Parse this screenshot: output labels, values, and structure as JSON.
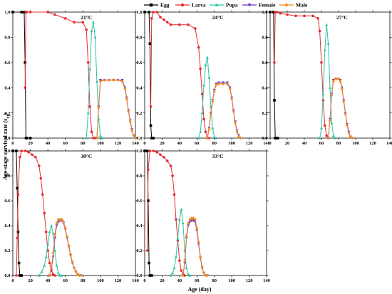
{
  "figure": {
    "legend": [
      {
        "name": "Egg",
        "color": "#000000",
        "marker": "square"
      },
      {
        "name": "Larva",
        "color": "#e8292f",
        "marker": "circle"
      },
      {
        "name": "Pupa",
        "color": "#2bc4a3",
        "marker": "triangle-up"
      },
      {
        "name": "Female",
        "color": "#6a2fd0",
        "marker": "triangle-down"
      },
      {
        "name": "Male",
        "color": "#f28a1e",
        "marker": "diamond"
      }
    ],
    "xlabel": "Age (day)",
    "ylabel": "Age-stage survival rate (sxj)",
    "ylabel_main": "Age-stage survival rate (s",
    "ylabel_sub": "xj",
    "ylabel_close": ")"
  },
  "chart_data": [
    {
      "type": "line",
      "title": "21°C",
      "xlim": [
        0,
        140
      ],
      "ylim": [
        0,
        1.0
      ],
      "xticks": [
        0,
        20,
        40,
        60,
        80,
        100,
        120,
        140
      ],
      "yticks": [
        0.0,
        0.2,
        0.4,
        0.6,
        0.8,
        1.0
      ],
      "series": [
        {
          "name": "Egg",
          "x": [
            0,
            10,
            13,
            14,
            15,
            16,
            20
          ],
          "y": [
            1.0,
            1.0,
            1.0,
            0.6,
            0.0,
            0.0,
            0.0
          ]
        },
        {
          "name": "Larva",
          "x": [
            14,
            15,
            16,
            20,
            40,
            48,
            60,
            70,
            80,
            84,
            86,
            88,
            90,
            92,
            94
          ],
          "y": [
            0.4,
            1.0,
            1.0,
            1.0,
            1.0,
            0.98,
            0.95,
            0.92,
            0.92,
            0.86,
            0.6,
            0.25,
            0.05,
            0.0,
            0.0
          ]
        },
        {
          "name": "Pupa",
          "x": [
            84,
            86,
            88,
            90,
            92,
            94,
            96,
            98,
            100,
            102
          ],
          "y": [
            0.0,
            0.2,
            0.55,
            0.85,
            0.92,
            0.8,
            0.45,
            0.15,
            0.02,
            0.0
          ]
        },
        {
          "name": "Female",
          "x": [
            96,
            98,
            100,
            105,
            110,
            115,
            120,
            125,
            128,
            130,
            132,
            134,
            136,
            138,
            140
          ],
          "y": [
            0.0,
            0.25,
            0.46,
            0.46,
            0.46,
            0.46,
            0.46,
            0.46,
            0.4,
            0.32,
            0.22,
            0.14,
            0.07,
            0.02,
            0.0
          ]
        },
        {
          "name": "Male",
          "x": [
            96,
            98,
            100,
            105,
            110,
            115,
            120,
            125,
            128,
            130,
            132,
            134,
            136,
            138,
            140
          ],
          "y": [
            0.0,
            0.24,
            0.45,
            0.46,
            0.46,
            0.46,
            0.46,
            0.45,
            0.39,
            0.31,
            0.21,
            0.13,
            0.06,
            0.02,
            0.0
          ]
        }
      ]
    },
    {
      "type": "line",
      "title": "24°C",
      "xlim": [
        0,
        140
      ],
      "ylim": [
        0,
        1.0
      ],
      "xticks": [
        0,
        20,
        40,
        60,
        80,
        100,
        120,
        140
      ],
      "yticks": [
        0.0,
        0.2,
        0.4,
        0.6,
        0.8,
        1.0
      ],
      "series": [
        {
          "name": "Egg",
          "x": [
            0,
            5,
            6,
            7,
            8,
            10
          ],
          "y": [
            1.0,
            1.0,
            0.75,
            0.1,
            0.0,
            0.0
          ]
        },
        {
          "name": "Larva",
          "x": [
            7,
            8,
            10,
            14,
            18,
            22,
            26,
            30,
            40,
            50,
            58,
            62,
            64,
            66,
            68,
            70,
            72,
            74
          ],
          "y": [
            0.25,
            0.95,
            1.0,
            1.0,
            0.96,
            0.94,
            0.92,
            0.9,
            0.9,
            0.9,
            0.87,
            0.72,
            0.55,
            0.35,
            0.15,
            0.05,
            0.0,
            0.0
          ]
        },
        {
          "name": "Pupa",
          "x": [
            62,
            64,
            66,
            68,
            70,
            72,
            74,
            76,
            78,
            80,
            82
          ],
          "y": [
            0.0,
            0.05,
            0.2,
            0.42,
            0.58,
            0.64,
            0.48,
            0.25,
            0.08,
            0.01,
            0.0
          ]
        },
        {
          "name": "Female",
          "x": [
            72,
            74,
            76,
            78,
            80,
            82,
            85,
            90,
            95,
            98,
            100,
            102,
            104,
            106,
            108,
            110
          ],
          "y": [
            0.0,
            0.08,
            0.2,
            0.3,
            0.38,
            0.43,
            0.44,
            0.44,
            0.44,
            0.4,
            0.32,
            0.22,
            0.13,
            0.06,
            0.02,
            0.0
          ]
        },
        {
          "name": "Male",
          "x": [
            72,
            74,
            76,
            78,
            80,
            82,
            85,
            90,
            95,
            98,
            100,
            102,
            104,
            106,
            108,
            110
          ],
          "y": [
            0.0,
            0.07,
            0.19,
            0.29,
            0.37,
            0.42,
            0.43,
            0.43,
            0.43,
            0.39,
            0.31,
            0.21,
            0.12,
            0.05,
            0.01,
            0.0
          ]
        }
      ]
    },
    {
      "type": "line",
      "title": "27°C",
      "xlim": [
        0,
        140
      ],
      "ylim": [
        0,
        1.0
      ],
      "xticks": [
        0,
        20,
        40,
        60,
        80,
        100,
        120,
        140
      ],
      "yticks": [
        0.0,
        0.2,
        0.4,
        0.6,
        0.8,
        1.0
      ],
      "series": [
        {
          "name": "Egg",
          "x": [
            0,
            4,
            5,
            6,
            7,
            9
          ],
          "y": [
            1.0,
            1.0,
            0.3,
            0.0,
            0.0,
            0.0
          ]
        },
        {
          "name": "Larva",
          "x": [
            5,
            6,
            8,
            12,
            20,
            30,
            40,
            50,
            56,
            58,
            60,
            62,
            64,
            66,
            68
          ],
          "y": [
            0.6,
            1.0,
            1.0,
            0.99,
            0.98,
            0.97,
            0.97,
            0.97,
            0.95,
            0.85,
            0.6,
            0.3,
            0.1,
            0.02,
            0.0
          ]
        },
        {
          "name": "Pupa",
          "x": [
            58,
            60,
            62,
            64,
            66,
            68,
            70,
            72,
            74,
            76
          ],
          "y": [
            0.0,
            0.08,
            0.35,
            0.7,
            0.9,
            0.75,
            0.4,
            0.12,
            0.02,
            0.0
          ]
        },
        {
          "name": "Female",
          "x": [
            68,
            70,
            72,
            74,
            76,
            78,
            80,
            82,
            84,
            86,
            88,
            90,
            92,
            94,
            96
          ],
          "y": [
            0.0,
            0.15,
            0.35,
            0.46,
            0.47,
            0.47,
            0.47,
            0.46,
            0.4,
            0.3,
            0.2,
            0.11,
            0.05,
            0.01,
            0.0
          ]
        },
        {
          "name": "Male",
          "x": [
            68,
            70,
            72,
            74,
            76,
            78,
            80,
            82,
            84,
            86,
            88,
            90,
            92,
            94,
            96
          ],
          "y": [
            0.0,
            0.14,
            0.34,
            0.45,
            0.47,
            0.47,
            0.47,
            0.45,
            0.39,
            0.29,
            0.19,
            0.1,
            0.04,
            0.01,
            0.0
          ]
        }
      ]
    },
    {
      "type": "line",
      "title": "30°C",
      "xlim": [
        0,
        140
      ],
      "ylim": [
        0,
        1.0
      ],
      "xticks": [
        0,
        20,
        40,
        60,
        80,
        100,
        120,
        140
      ],
      "yticks": [
        0.0,
        0.2,
        0.4,
        0.6,
        0.8,
        1.0
      ],
      "series": [
        {
          "name": "Egg",
          "x": [
            0,
            4,
            5,
            6,
            7,
            8,
            10
          ],
          "y": [
            1.0,
            1.0,
            0.7,
            0.35,
            0.1,
            0.0,
            0.0
          ]
        },
        {
          "name": "Larva",
          "x": [
            4,
            5,
            6,
            8,
            10,
            14,
            18,
            22,
            26,
            30,
            32,
            34,
            36,
            38,
            40,
            42,
            44,
            46,
            48
          ],
          "y": [
            0.0,
            0.3,
            0.65,
            0.95,
            1.0,
            1.0,
            0.99,
            0.97,
            0.95,
            0.88,
            0.78,
            0.65,
            0.5,
            0.35,
            0.2,
            0.1,
            0.04,
            0.01,
            0.0
          ]
        },
        {
          "name": "Pupa",
          "x": [
            30,
            33,
            36,
            38,
            40,
            42,
            44,
            46,
            48,
            50,
            52,
            54,
            56
          ],
          "y": [
            0.0,
            0.03,
            0.08,
            0.15,
            0.25,
            0.35,
            0.4,
            0.34,
            0.2,
            0.08,
            0.02,
            0.0,
            0.0
          ]
        },
        {
          "name": "Female",
          "x": [
            42,
            44,
            46,
            48,
            50,
            52,
            54,
            56,
            58,
            60,
            62,
            64,
            66,
            68,
            70,
            72,
            74,
            76,
            78
          ],
          "y": [
            0.0,
            0.05,
            0.15,
            0.3,
            0.4,
            0.43,
            0.44,
            0.44,
            0.42,
            0.37,
            0.3,
            0.23,
            0.16,
            0.1,
            0.06,
            0.03,
            0.01,
            0.0,
            0.0
          ]
        },
        {
          "name": "Male",
          "x": [
            42,
            44,
            46,
            48,
            50,
            52,
            54,
            56,
            58,
            60,
            62,
            64,
            66,
            68,
            70,
            72,
            74,
            76,
            78
          ],
          "y": [
            0.0,
            0.06,
            0.18,
            0.33,
            0.42,
            0.45,
            0.45,
            0.45,
            0.43,
            0.38,
            0.31,
            0.24,
            0.17,
            0.11,
            0.06,
            0.03,
            0.01,
            0.0,
            0.0
          ]
        }
      ]
    },
    {
      "type": "line",
      "title": "33°C",
      "xlim": [
        0,
        140
      ],
      "ylim": [
        0,
        1.0
      ],
      "xticks": [
        0,
        20,
        40,
        60,
        80,
        100,
        120,
        140
      ],
      "yticks": [
        0.0,
        0.2,
        0.4,
        0.6,
        0.8,
        1.0
      ],
      "series": [
        {
          "name": "Egg",
          "x": [
            0,
            3,
            4,
            5,
            6,
            8
          ],
          "y": [
            1.0,
            1.0,
            0.6,
            0.1,
            0.0,
            0.0
          ]
        },
        {
          "name": "Larva",
          "x": [
            3,
            4,
            6,
            10,
            14,
            18,
            22,
            26,
            30,
            32,
            34,
            36,
            38,
            40,
            42,
            44,
            46
          ],
          "y": [
            0.2,
            0.85,
            1.0,
            1.0,
            0.99,
            0.97,
            0.95,
            0.92,
            0.88,
            0.8,
            0.65,
            0.45,
            0.28,
            0.12,
            0.04,
            0.01,
            0.0
          ]
        },
        {
          "name": "Pupa",
          "x": [
            30,
            32,
            34,
            36,
            38,
            40,
            42,
            44,
            46,
            48,
            50,
            52
          ],
          "y": [
            0.0,
            0.02,
            0.06,
            0.15,
            0.3,
            0.45,
            0.53,
            0.42,
            0.2,
            0.06,
            0.01,
            0.0
          ]
        },
        {
          "name": "Female",
          "x": [
            44,
            46,
            48,
            50,
            52,
            54,
            56,
            58,
            60,
            62,
            64,
            66,
            68,
            70,
            72
          ],
          "y": [
            0.0,
            0.1,
            0.3,
            0.4,
            0.43,
            0.44,
            0.44,
            0.43,
            0.36,
            0.25,
            0.14,
            0.06,
            0.02,
            0.0,
            0.0
          ]
        },
        {
          "name": "Male",
          "x": [
            44,
            46,
            48,
            50,
            52,
            54,
            56,
            58,
            60,
            62,
            64,
            66,
            68,
            70,
            72
          ],
          "y": [
            0.0,
            0.12,
            0.32,
            0.42,
            0.45,
            0.46,
            0.46,
            0.45,
            0.38,
            0.27,
            0.15,
            0.07,
            0.02,
            0.0,
            0.0
          ]
        }
      ]
    }
  ]
}
